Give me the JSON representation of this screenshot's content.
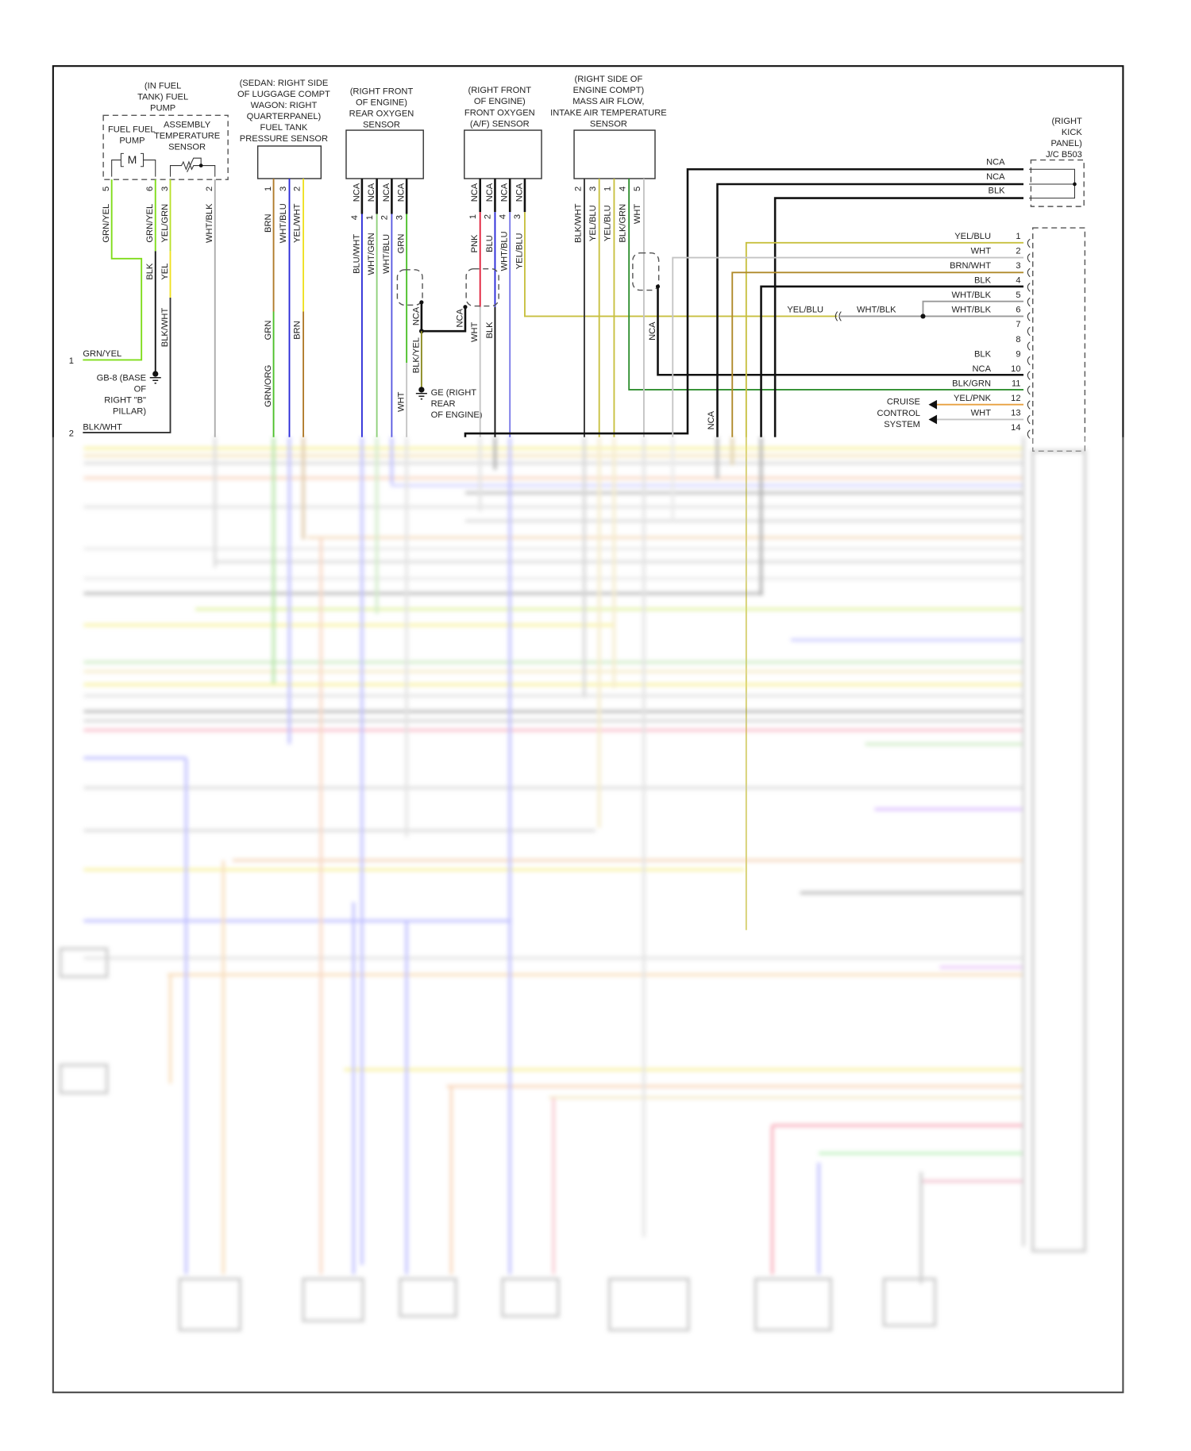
{
  "colors": {
    "grn_yel": "#7fdc1a",
    "grn": "#4cc02a",
    "yel": "#efe020",
    "yel_grn": "#b9e02a",
    "brn": "#b07a2a",
    "blu": "#2a2ad8",
    "wht": "#c4c4c4",
    "pnk": "#e0203a",
    "yel_blu": "#c8c040",
    "blk_grn": "#2f8f2f",
    "yel_pnk": "#e8a040",
    "blk": "#111111"
  },
  "fuel_pump": {
    "title": [
      "(IN FUEL",
      "TANK) FUEL",
      "PUMP"
    ],
    "fuel_fuel": "FUEL FUEL",
    "pump": "PUMP",
    "assembly": "ASSEMBLY",
    "temperature": "TEMPERATURE",
    "sensor": "SENSOR",
    "motor": "M",
    "pins": [
      "5",
      "6",
      "3",
      "2"
    ],
    "wires": [
      "GRN/YEL",
      "GRN/YEL",
      "YEL/GRN",
      "WHT/BLK"
    ],
    "lower": [
      "BLK",
      "YEL",
      "BLK/WHT"
    ]
  },
  "left_terminals": {
    "t1_num": "1",
    "t1_label": "GRN/YEL",
    "t2_num": "2",
    "t2_label": "BLK/WHT",
    "ground": [
      "GB-8 (BASE",
      "OF",
      "RIGHT \"B\"",
      "PILLAR)"
    ]
  },
  "pressure_sensor": {
    "title": [
      "(SEDAN: RIGHT SIDE",
      "OF LUGGAGE COMPT",
      "WAGON: RIGHT",
      "QUARTERPANEL)",
      "FUEL TANK",
      "PRESSURE SENSOR"
    ],
    "pins": [
      "1",
      "3",
      "2"
    ],
    "wires": [
      "BRN",
      "WHT/BLU",
      "YEL/WHT"
    ],
    "lower": [
      "GRN",
      "BRN",
      "GRN/ORG"
    ]
  },
  "rear_o2": {
    "title": [
      "(RIGHT FRONT",
      "OF ENGINE)",
      "REAR OXYGEN",
      "SENSOR"
    ],
    "nca": [
      "NCA",
      "NCA",
      "NCA",
      "NCA"
    ],
    "pins": [
      "4",
      "1",
      "2",
      "3"
    ],
    "wires": [
      "BLU/WHT",
      "WHT/GRN",
      "WHT/BLU",
      "GRN"
    ],
    "shield_label": "NCA",
    "blk_yel": "BLK/YEL",
    "wht": "WHT",
    "ground": [
      "GE (RIGHT",
      "REAR",
      "OF ENGINE)"
    ]
  },
  "front_o2": {
    "title": [
      "(RIGHT FRONT",
      "OF ENGINE)",
      "FRONT OXYGEN",
      "(A/F) SENSOR"
    ],
    "nca": [
      "NCA",
      "NCA",
      "NCA",
      "NCA"
    ],
    "pins": [
      "1",
      "2",
      "4",
      "3"
    ],
    "wires": [
      "PNK",
      "BLU",
      "WHT/BLU",
      "YEL/BLU"
    ],
    "shield_label": "NCA",
    "wht": "WHT",
    "blk": "BLK"
  },
  "maf_sensor": {
    "title": [
      "(RIGHT SIDE OF",
      "ENGINE COMPT)",
      "MASS AIR FLOW,",
      "INTAKE AIR TEMPERATURE",
      "SENSOR"
    ],
    "pins": [
      "2",
      "3",
      "1",
      "4",
      "5"
    ],
    "wires": [
      "BLK/WHT",
      "YEL/BLU",
      "YEL/BLU",
      "BLK/GRN",
      "WHT"
    ],
    "shield_label": "NCA"
  },
  "junction": {
    "title": [
      "(RIGHT",
      "KICK",
      "PANEL)",
      "J/C B503"
    ],
    "rows": [
      "NCA",
      "NCA",
      "BLK"
    ],
    "vertical_nca": "NCA"
  },
  "connector": {
    "pins": [
      {
        "num": "1",
        "label": "YEL/BLU"
      },
      {
        "num": "2",
        "label": "WHT"
      },
      {
        "num": "3",
        "label": "BRN/WHT"
      },
      {
        "num": "4",
        "label": "BLK"
      },
      {
        "num": "5",
        "label": "WHT/BLK"
      },
      {
        "num": "6",
        "label": "WHT/BLK"
      },
      {
        "num": "7",
        "label": ""
      },
      {
        "num": "8",
        "label": ""
      },
      {
        "num": "9",
        "label": "BLK"
      },
      {
        "num": "10",
        "label": "NCA"
      },
      {
        "num": "11",
        "label": "BLK/GRN"
      },
      {
        "num": "12",
        "label": "YEL/PNK"
      },
      {
        "num": "13",
        "label": "WHT"
      },
      {
        "num": "14",
        "label": ""
      }
    ],
    "splice_labels": [
      "YEL/BLU",
      "WHT/BLK"
    ],
    "cruise": [
      "CRUISE",
      "CONTROL",
      "SYSTEM"
    ]
  }
}
